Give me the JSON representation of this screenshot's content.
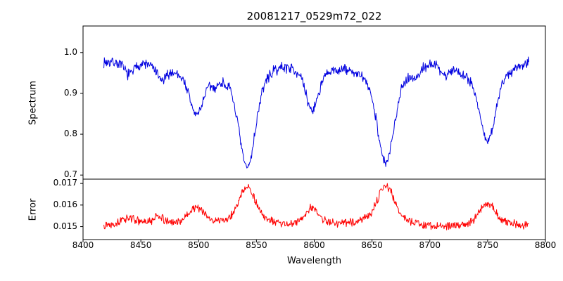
{
  "chart_data": {
    "type": "line",
    "title": "20081217_0529m72_022",
    "xlabel": "Wavelength",
    "x_range": [
      8418,
      8786
    ],
    "x_ticks": [
      8400,
      8450,
      8500,
      8550,
      8600,
      8650,
      8700,
      8750,
      8800
    ],
    "x_tick_labels": [
      "8400",
      "8450",
      "8500",
      "8550",
      "8600",
      "8650",
      "8700",
      "8750",
      "8800"
    ],
    "legend": "none",
    "grid": false,
    "subplots": [
      {
        "name": "spectrum",
        "ylabel": "Spectrum",
        "color": "#0000e0",
        "ylim": [
          0.69,
          1.065
        ],
        "y_ticks": [
          0.7,
          0.8,
          0.9,
          1.0
        ],
        "y_tick_labels": [
          "0.7",
          "0.8",
          "0.9",
          "1.0"
        ],
        "continuum": 0.974,
        "noise_amplitude": 0.016,
        "absorption_lines": [
          {
            "center": 8440,
            "depth": 0.035,
            "sigma": 4
          },
          {
            "center": 8468,
            "depth": 0.04,
            "sigma": 4
          },
          {
            "center": 8498,
            "depth": 0.115,
            "sigma": 5.5
          },
          {
            "center": 8514,
            "depth": 0.02,
            "sigma": 3
          },
          {
            "center": 8542,
            "depth": 0.26,
            "sigma": 6.5
          },
          {
            "center": 8598,
            "depth": 0.11,
            "sigma": 5
          },
          {
            "center": 8662,
            "depth": 0.25,
            "sigma": 6.5
          },
          {
            "center": 8688,
            "depth": 0.025,
            "sigma": 3
          },
          {
            "center": 8713,
            "depth": 0.025,
            "sigma": 3
          },
          {
            "center": 8750,
            "depth": 0.185,
            "sigma": 6
          }
        ]
      },
      {
        "name": "error",
        "ylabel": "Error",
        "color": "#ff0000",
        "ylim": [
          0.0144,
          0.0172
        ],
        "y_ticks": [
          0.015,
          0.016,
          0.017
        ],
        "y_tick_labels": [
          "0.015",
          "0.016",
          "0.017"
        ],
        "baseline": 0.01505,
        "noise_amplitude": 0.00022,
        "peaks": [
          {
            "center": 8440,
            "amp": 0.0003,
            "sigma": 5
          },
          {
            "center": 8465,
            "amp": 0.0004,
            "sigma": 3
          },
          {
            "center": 8498,
            "amp": 0.00085,
            "sigma": 6
          },
          {
            "center": 8542,
            "amp": 0.00185,
            "sigma": 6.5
          },
          {
            "center": 8598,
            "amp": 0.0008,
            "sigma": 5
          },
          {
            "center": 8662,
            "amp": 0.0018,
            "sigma": 6.5
          },
          {
            "center": 8750,
            "amp": 0.0011,
            "sigma": 6
          }
        ]
      }
    ]
  }
}
